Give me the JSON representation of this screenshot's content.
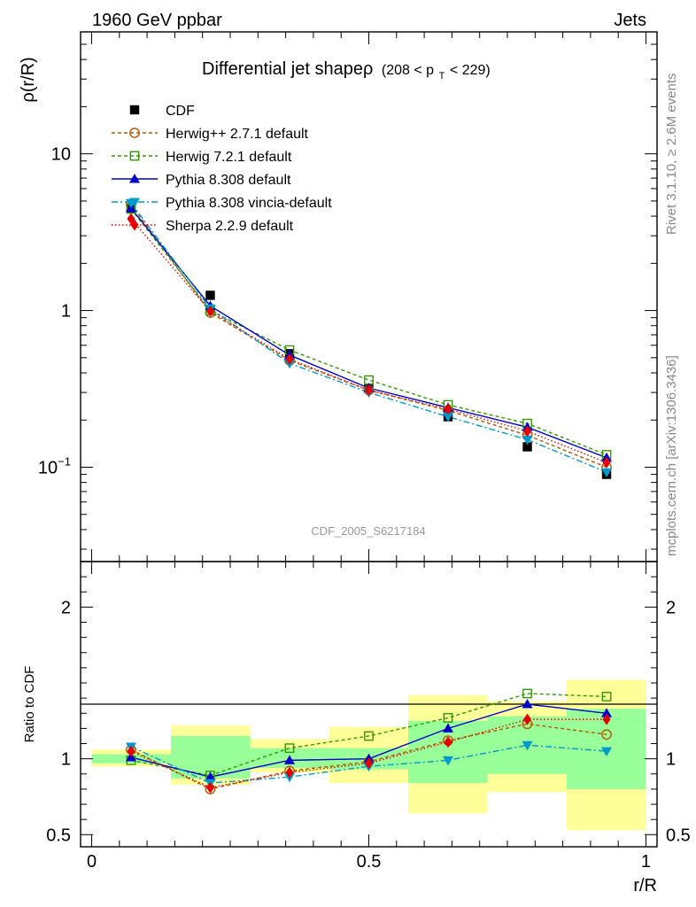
{
  "header": {
    "energy_label": "1960 GeV ppbar",
    "process_label": "Jets",
    "side_rivet": "Rivet 3.1.10, ≥ 2.6M events",
    "side_mcplots": "mcplots.cern.ch [arXiv:1306.3436]"
  },
  "chart_data": [
    {
      "type": "line",
      "title": "Differential jet shapeρ (208 < p_T < 229)",
      "title_main": "Differential jet shapeρ",
      "title_range_pre": "(208 < p",
      "title_range_sub": "T",
      "title_range_post": " < 229)",
      "ylabel": "ρ(r/R)",
      "yscale": "log",
      "ylim": [
        0.025,
        60
      ],
      "xlim": [
        -0.02,
        1.02
      ],
      "y_ticks": [
        {
          "value": 0.1,
          "label": "10",
          "sup": "−1"
        },
        {
          "value": 1,
          "label": "1",
          "sup": ""
        },
        {
          "value": 10,
          "label": "10",
          "sup": ""
        }
      ],
      "watermark": "CDF_2005_S6217184",
      "x": [
        0.071,
        0.214,
        0.357,
        0.5,
        0.643,
        0.786,
        0.929
      ],
      "data": {
        "name": "CDF",
        "values": [
          4.5,
          1.25,
          0.53,
          0.32,
          0.21,
          0.135,
          0.09
        ],
        "color": "#000000",
        "marker": "square-filled"
      },
      "series": [
        {
          "name": "Herwig++ 2.7.1 default",
          "values": [
            4.75,
            0.97,
            0.48,
            0.31,
            0.23,
            0.16,
            0.1
          ],
          "color": "#b35900",
          "marker": "circle-open",
          "dash": "4,3"
        },
        {
          "name": "Herwig 7.2.1 default",
          "values": [
            4.45,
            1.0,
            0.56,
            0.36,
            0.25,
            0.19,
            0.12
          ],
          "color": "#339900",
          "marker": "square-open",
          "dash": "4,3"
        },
        {
          "name": "Pythia 8.308 default",
          "values": [
            4.5,
            1.07,
            0.52,
            0.32,
            0.24,
            0.18,
            0.115
          ],
          "color": "#0000cc",
          "marker": "triangle-up",
          "dash": ""
        },
        {
          "name": "Pythia 8.308 vincia-default",
          "values": [
            4.85,
            1.03,
            0.46,
            0.3,
            0.21,
            0.15,
            0.093
          ],
          "color": "#0099cc",
          "marker": "triangle-down",
          "dash": "7,3,2,3"
        },
        {
          "name": "Sherpa 2.2.9 default",
          "values": [
            3.85,
            0.99,
            0.49,
            0.31,
            0.235,
            0.17,
            0.107
          ],
          "color": "#e60000",
          "marker": "diamond",
          "dash": "1.5,2.5"
        }
      ]
    },
    {
      "type": "line",
      "ylabel": "Ratio to CDF",
      "xlabel": "r/R",
      "ylim": [
        0.42,
        2.3
      ],
      "y_ticks": [
        {
          "value": 0.5,
          "label": "0.5"
        },
        {
          "value": 1,
          "label": "1"
        },
        {
          "value": 2,
          "label": "2"
        }
      ],
      "x_ticks": [
        {
          "value": 0,
          "label": "0"
        },
        {
          "value": 0.5,
          "label": "0.5"
        },
        {
          "value": 1,
          "label": "1"
        }
      ],
      "x": [
        0.071,
        0.214,
        0.357,
        0.5,
        0.643,
        0.786,
        0.929
      ],
      "bin_edges": [
        0,
        0.143,
        0.286,
        0.429,
        0.571,
        0.714,
        0.857,
        1.0
      ],
      "stat_band": [
        [
          0.97,
          1.03
        ],
        [
          0.87,
          1.15
        ],
        [
          0.94,
          1.07
        ],
        [
          0.93,
          1.07
        ],
        [
          0.84,
          1.25
        ],
        [
          0.9,
          1.28
        ],
        [
          0.8,
          1.33
        ]
      ],
      "total_band": [
        [
          0.95,
          1.06
        ],
        [
          0.83,
          1.22
        ],
        [
          0.91,
          1.13
        ],
        [
          0.84,
          1.21
        ],
        [
          0.64,
          1.42
        ],
        [
          0.78,
          1.38
        ],
        [
          0.53,
          1.52
        ]
      ],
      "series": [
        {
          "name": "Herwig++ 2.7.1 default",
          "values": [
            1.06,
            0.8,
            0.92,
            0.98,
            1.12,
            1.23,
            1.16
          ]
        },
        {
          "name": "Herwig 7.2.1 default",
          "values": [
            0.99,
            0.89,
            1.07,
            1.15,
            1.27,
            1.43,
            1.41
          ]
        },
        {
          "name": "Pythia 8.308 default",
          "values": [
            1.01,
            0.88,
            0.99,
            1.0,
            1.2,
            1.36,
            1.3
          ]
        },
        {
          "name": "Pythia 8.308 vincia-default",
          "values": [
            1.08,
            0.84,
            0.88,
            0.95,
            0.99,
            1.09,
            1.05
          ]
        },
        {
          "name": "Sherpa 2.2.9 default",
          "values": [
            1.05,
            0.81,
            0.91,
            0.97,
            1.11,
            1.26,
            1.26
          ]
        }
      ]
    }
  ]
}
